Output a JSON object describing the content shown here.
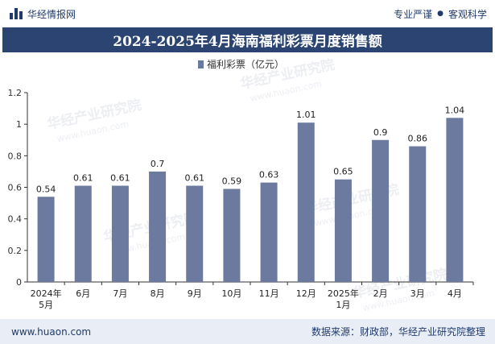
{
  "header": {
    "brand": "华经情报网",
    "tag1": "专业严谨",
    "tag2": "客观科学",
    "separator": "●"
  },
  "watermark": "华经产业研究院",
  "watermark_url": "www.huaon.com",
  "footer": {
    "website": "www.huaon.com",
    "source": "数据来源：财政部，华经产业研究院整理"
  },
  "colors": {
    "bar": "#6b7a9e",
    "title_bg": "#2c4471",
    "footer_bg": "#e9edf5"
  },
  "chart_data": {
    "type": "bar",
    "title": "2024-2025年4月海南福利彩票月度销售额",
    "categories": [
      "2024年\n5月",
      "6月",
      "7月",
      "8月",
      "9月",
      "10月",
      "11月",
      "12月",
      "2025年\n1月",
      "2月",
      "3月",
      "4月"
    ],
    "series": [
      {
        "name": "福利彩票（亿元）",
        "values": [
          0.54,
          0.61,
          0.61,
          0.7,
          0.61,
          0.59,
          0.63,
          1.01,
          0.65,
          0.9,
          0.86,
          1.04
        ]
      }
    ],
    "y_ticks": [
      0,
      0.2,
      0.4,
      0.6,
      0.8,
      1,
      1.2
    ],
    "ylim": [
      0,
      1.2
    ],
    "grid": false,
    "legend_position": "top-center"
  }
}
